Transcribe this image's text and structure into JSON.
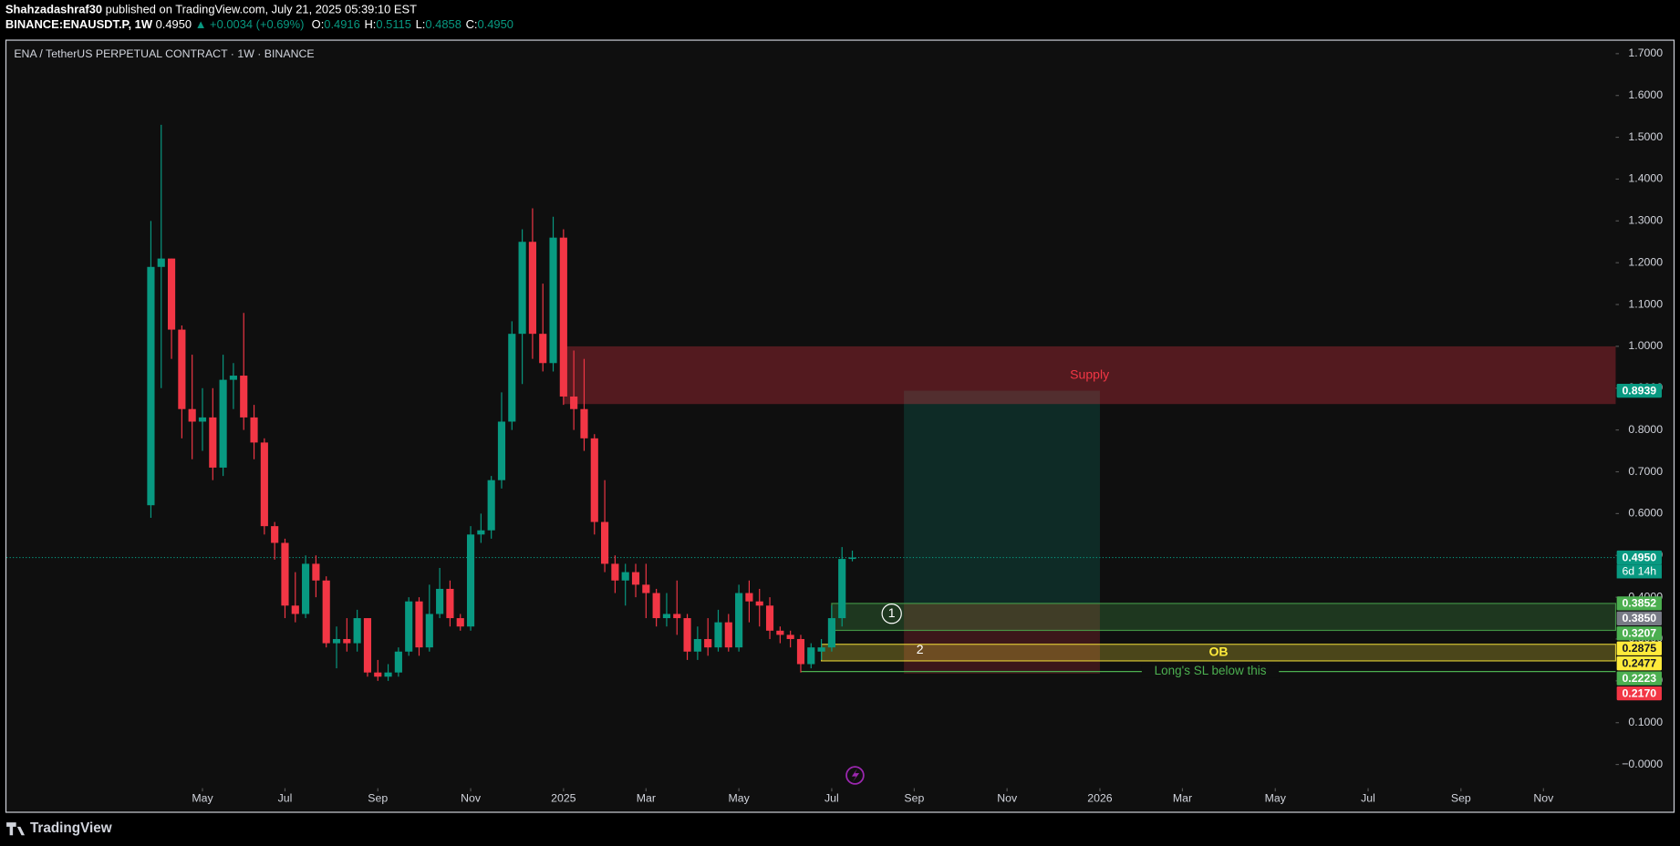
{
  "header": {
    "author": "Shahzadashraf30",
    "published": "published on TradingView.com, July 21, 2025 05:39:10 EST",
    "symbol": "BINANCE:ENAUSDT.P, 1W",
    "price": "0.4950",
    "change": "▲ +0.0034 (+0.69%)",
    "ohlc": [
      {
        "key": "O:",
        "value": "0.4916"
      },
      {
        "key": "H:",
        "value": "0.5115"
      },
      {
        "key": "L:",
        "value": "0.4858"
      },
      {
        "key": "C:",
        "value": "0.4950"
      }
    ]
  },
  "chart_data": {
    "type": "candlestick",
    "title": "ENA / TetherUS PERPETUAL CONTRACT · 1W · BINANCE",
    "up_color": "#089981",
    "down_color": "#f23645",
    "open": [
      0.62,
      1.19,
      1.21,
      1.04,
      0.85,
      0.82,
      0.83,
      0.71,
      0.92,
      0.93,
      0.83,
      0.77,
      0.57,
      0.53,
      0.38,
      0.36,
      0.48,
      0.44,
      0.29,
      0.3,
      0.29,
      0.35,
      0.22,
      0.21,
      0.22,
      0.27,
      0.39,
      0.28,
      0.36,
      0.42,
      0.35,
      0.33,
      0.55,
      0.56,
      0.68,
      0.82,
      1.03,
      1.25,
      1.03,
      0.96,
      1.26,
      0.88,
      0.85,
      0.78,
      0.58,
      0.48,
      0.44,
      0.46,
      0.43,
      0.41,
      0.35,
      0.36,
      0.35,
      0.27,
      0.3,
      0.28,
      0.34,
      0.28,
      0.41,
      0.39,
      0.38,
      0.32,
      0.31,
      0.3,
      0.24,
      0.27,
      0.28,
      0.35,
      0.4916
    ],
    "high": [
      1.3,
      1.53,
      1.21,
      1.05,
      0.98,
      0.9,
      0.9,
      0.98,
      0.96,
      1.08,
      0.86,
      0.78,
      0.58,
      0.54,
      0.46,
      0.5,
      0.5,
      0.45,
      0.33,
      0.35,
      0.37,
      0.35,
      0.25,
      0.24,
      0.28,
      0.4,
      0.4,
      0.43,
      0.47,
      0.44,
      0.36,
      0.57,
      0.6,
      0.69,
      0.89,
      1.06,
      1.28,
      1.33,
      1.15,
      1.31,
      1.28,
      0.99,
      0.97,
      0.79,
      0.68,
      0.5,
      0.48,
      0.48,
      0.48,
      0.42,
      0.41,
      0.44,
      0.36,
      0.33,
      0.35,
      0.37,
      0.36,
      0.43,
      0.44,
      0.42,
      0.4,
      0.33,
      0.32,
      0.31,
      0.29,
      0.3,
      0.38,
      0.52,
      0.5115
    ],
    "low": [
      0.59,
      0.9,
      0.97,
      0.78,
      0.73,
      0.75,
      0.68,
      0.69,
      0.85,
      0.8,
      0.73,
      0.55,
      0.49,
      0.35,
      0.34,
      0.35,
      0.4,
      0.28,
      0.23,
      0.27,
      0.27,
      0.21,
      0.2,
      0.2,
      0.21,
      0.26,
      0.26,
      0.27,
      0.35,
      0.33,
      0.32,
      0.32,
      0.53,
      0.54,
      0.66,
      0.8,
      0.91,
      0.97,
      0.94,
      0.94,
      0.86,
      0.8,
      0.75,
      0.55,
      0.46,
      0.41,
      0.38,
      0.4,
      0.35,
      0.33,
      0.33,
      0.31,
      0.25,
      0.25,
      0.26,
      0.27,
      0.27,
      0.27,
      0.34,
      0.33,
      0.3,
      0.29,
      0.28,
      0.22,
      0.23,
      0.25,
      0.27,
      0.33,
      0.4858
    ],
    "close": [
      1.19,
      1.21,
      1.04,
      0.85,
      0.82,
      0.83,
      0.71,
      0.92,
      0.93,
      0.83,
      0.77,
      0.57,
      0.53,
      0.38,
      0.36,
      0.48,
      0.44,
      0.29,
      0.3,
      0.29,
      0.35,
      0.22,
      0.21,
      0.22,
      0.27,
      0.39,
      0.28,
      0.36,
      0.42,
      0.35,
      0.33,
      0.55,
      0.56,
      0.68,
      0.82,
      1.03,
      1.25,
      1.03,
      0.96,
      1.26,
      0.88,
      0.85,
      0.78,
      0.58,
      0.48,
      0.44,
      0.46,
      0.43,
      0.41,
      0.35,
      0.36,
      0.35,
      0.27,
      0.3,
      0.28,
      0.34,
      0.28,
      0.41,
      0.39,
      0.38,
      0.32,
      0.31,
      0.3,
      0.24,
      0.28,
      0.28,
      0.35,
      0.4916,
      0.495
    ],
    "xlim": [
      -14,
      142
    ],
    "xticks": [
      {
        "value": 5,
        "label": "May"
      },
      {
        "value": 13,
        "label": "Jul"
      },
      {
        "value": 22,
        "label": "Sep"
      },
      {
        "value": 31,
        "label": "Nov"
      },
      {
        "value": 40,
        "label": "2025"
      },
      {
        "value": 48,
        "label": "Mar"
      },
      {
        "value": 57,
        "label": "May"
      },
      {
        "value": 66,
        "label": "Jul"
      },
      {
        "value": 74,
        "label": "Sep"
      },
      {
        "value": 83,
        "label": "Nov"
      },
      {
        "value": 92,
        "label": "2026"
      },
      {
        "value": 100,
        "label": "Mar"
      },
      {
        "value": 109,
        "label": "May"
      },
      {
        "value": 118,
        "label": "Jul"
      },
      {
        "value": 127,
        "label": "Sep"
      },
      {
        "value": 135,
        "label": "Nov"
      }
    ],
    "ylim": [
      -0.113,
      1.731
    ],
    "yticks": [
      {
        "value": 1.7,
        "label": "1.7000"
      },
      {
        "value": 1.6,
        "label": "1.6000"
      },
      {
        "value": 1.5,
        "label": "1.5000"
      },
      {
        "value": 1.4,
        "label": "1.4000"
      },
      {
        "value": 1.3,
        "label": "1.3000"
      },
      {
        "value": 1.2,
        "label": "1.2000"
      },
      {
        "value": 1.1,
        "label": "1.1000"
      },
      {
        "value": 1.0,
        "label": "1.0000"
      },
      {
        "value": 0.9,
        "label": "0.9000"
      },
      {
        "value": 0.8,
        "label": "0.8000"
      },
      {
        "value": 0.7,
        "label": "0.7000"
      },
      {
        "value": 0.6,
        "label": "0.6000"
      },
      {
        "value": 0.5,
        "label": "0.5000"
      },
      {
        "value": 0.4,
        "label": "0.4000"
      },
      {
        "value": 0.3,
        "label": "0.3000"
      },
      {
        "value": 0.2,
        "label": "0.2000"
      },
      {
        "value": 0.1,
        "label": "0.1000"
      },
      {
        "value": 0,
        "label": "−0.0000"
      }
    ],
    "zones": [
      {
        "name": "Supply",
        "top": 1.0,
        "bottom": 0.862,
        "start": 40,
        "color": "#f23645"
      },
      {
        "marker": "1",
        "top": 0.3852,
        "bottom": 0.3207,
        "start": 66,
        "color": "#4caf50"
      },
      {
        "name": "OB",
        "marker": "2",
        "top": 0.2875,
        "bottom": 0.2477,
        "start": 65,
        "color": "#ffeb3b"
      }
    ],
    "level": {
      "name": "Long's SL below this",
      "value": 0.2223,
      "start": 63,
      "color": "#4caf50"
    },
    "position": {
      "entry": 0.385,
      "target": 0.8939,
      "stop": 0.217,
      "start": 73,
      "end": 92
    },
    "last_price": {
      "value": 0.495,
      "label": "0.4950",
      "countdown": "6d 14h",
      "color": "#089981"
    },
    "price_labels": [
      {
        "value": 0.8939,
        "color": "#089981"
      },
      {
        "value": 0.3852,
        "color": "#4caf50"
      },
      {
        "value": 0.385,
        "label": "0.3850",
        "color": "#787b86"
      },
      {
        "value": 0.3207,
        "color": "#4caf50"
      },
      {
        "value": 0.2875,
        "color": "#ffeb3b"
      },
      {
        "value": 0.2477,
        "color": "#ffeb3b"
      },
      {
        "value": 0.2223,
        "color": "#4caf50"
      },
      {
        "value": 0.217,
        "label": "0.2170",
        "color": "#f23645"
      }
    ]
  },
  "footer": {
    "brand": "TradingView"
  }
}
